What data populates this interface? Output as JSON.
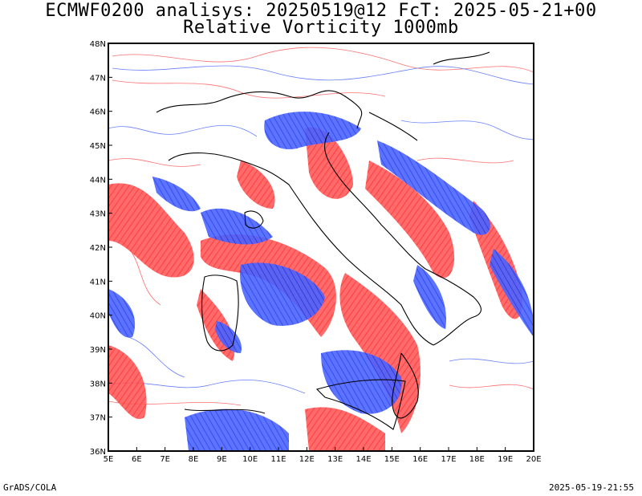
{
  "title_line1": "ECMWF0200 analisys: 20250519@12 FcT: 2025-05-21+00",
  "title_line2": "Relative Vorticity 1000mb",
  "footer_left": "GrADS/COLA",
  "footer_right": "2025-05-19-21:55",
  "map": {
    "lon_range": [
      5,
      20
    ],
    "lat_range": [
      36,
      48
    ],
    "lon_ticks": [
      "5E",
      "6E",
      "7E",
      "8E",
      "9E",
      "10E",
      "11E",
      "12E",
      "13E",
      "14E",
      "15E",
      "16E",
      "17E",
      "18E",
      "19E",
      "20E"
    ],
    "lat_ticks": [
      "36N",
      "37N",
      "38N",
      "39N",
      "40N",
      "41N",
      "42N",
      "43N",
      "44N",
      "45N",
      "46N",
      "47N",
      "48N"
    ],
    "colors": {
      "positive": "#ff3b3b",
      "negative": "#2b4bff",
      "coast": "#000000",
      "frame": "#000000"
    }
  }
}
